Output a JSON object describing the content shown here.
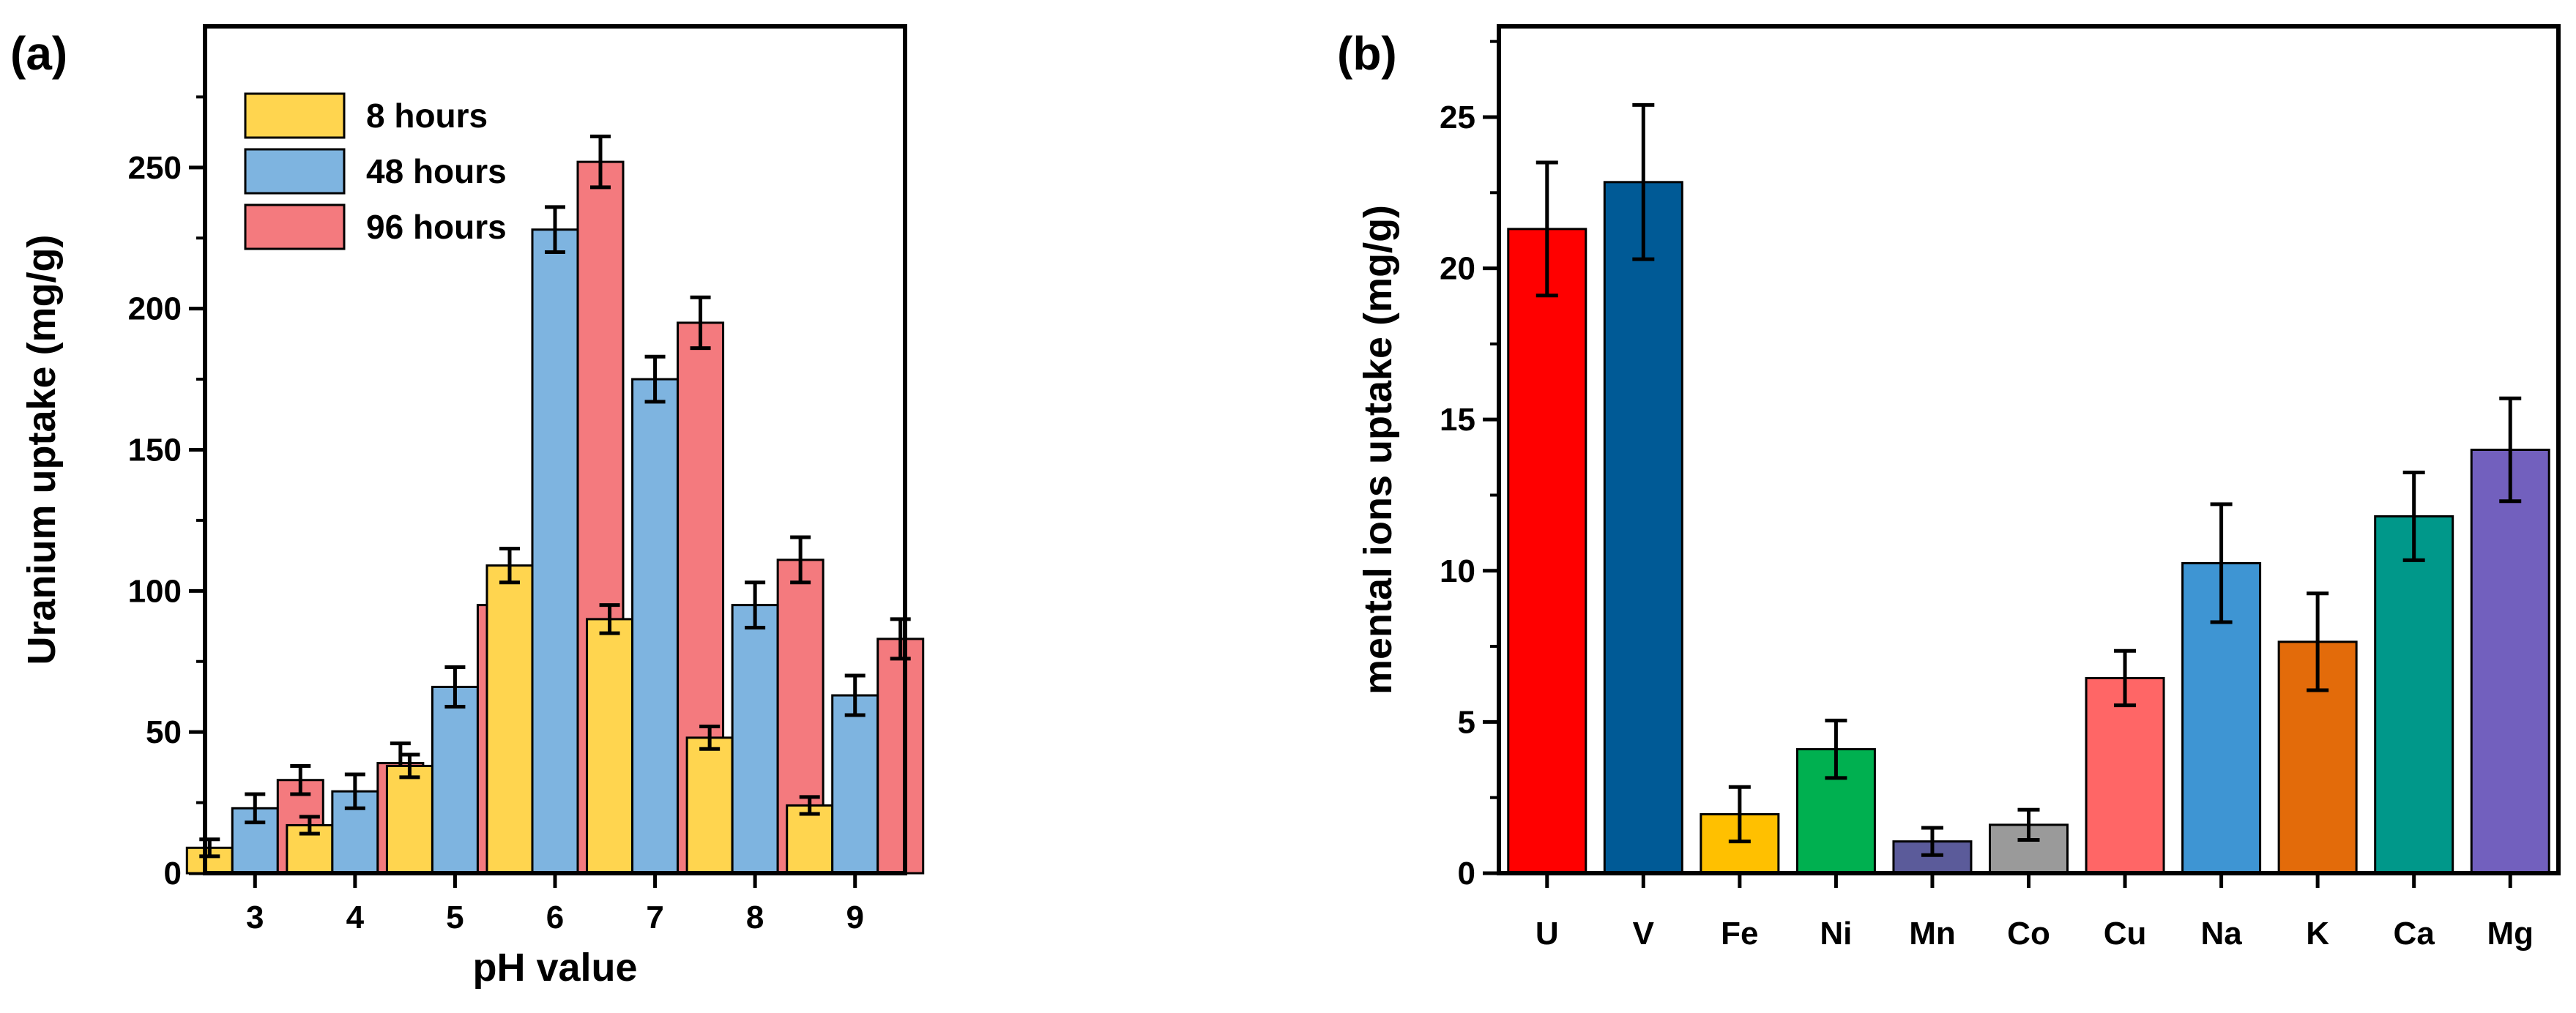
{
  "chart_data": [
    {
      "type": "bar",
      "panel_label": "(a)",
      "title": "",
      "xlabel": "pH value",
      "ylabel": "Uranium uptake (mg/g)",
      "ylim": [
        0,
        300
      ],
      "yticks": [
        0,
        50,
        100,
        150,
        200,
        250
      ],
      "categories": [
        "3",
        "4",
        "5",
        "6",
        "7",
        "8",
        "9"
      ],
      "legend_position": "top-left",
      "series": [
        {
          "name": "8  hours",
          "color": "#FFD54F",
          "values": [
            9,
            17,
            38,
            109,
            90,
            48,
            24
          ],
          "errors": [
            3,
            3,
            4,
            6,
            5,
            4,
            3
          ]
        },
        {
          "name": "48 hours",
          "color": "#7EB4E0",
          "values": [
            23,
            29,
            66,
            228,
            175,
            95,
            63
          ],
          "errors": [
            5,
            6,
            7,
            8,
            8,
            8,
            7
          ]
        },
        {
          "name": "96 hours",
          "color": "#F47A7E",
          "values": [
            33,
            39,
            95,
            252,
            195,
            111,
            83
          ],
          "errors": [
            5,
            7,
            8,
            9,
            9,
            8,
            7
          ]
        }
      ]
    },
    {
      "type": "bar",
      "panel_label": "(b)",
      "title": "",
      "xlabel": "",
      "ylabel": "mental ions uptake (mg/g)",
      "ylim": [
        0,
        28
      ],
      "yticks": [
        0,
        5,
        10,
        15,
        20,
        25
      ],
      "categories": [
        "U",
        "V",
        "Fe",
        "Ni",
        "Mn",
        "Co",
        "Cu",
        "Na",
        "K",
        "Ca",
        "Mg"
      ],
      "values": [
        21.3,
        22.85,
        1.95,
        4.1,
        1.05,
        1.6,
        6.45,
        10.25,
        7.65,
        11.8,
        14.0
      ],
      "errors": [
        2.2,
        2.55,
        0.9,
        0.95,
        0.45,
        0.5,
        0.9,
        1.95,
        1.6,
        1.45,
        1.7
      ],
      "colors": [
        "#FF0000",
        "#005A96",
        "#FFC000",
        "#00B050",
        "#5B5B9A",
        "#9A9A9A",
        "#FF6666",
        "#3E95D3",
        "#E36B0A",
        "#00988A",
        "#7260BE"
      ]
    }
  ]
}
